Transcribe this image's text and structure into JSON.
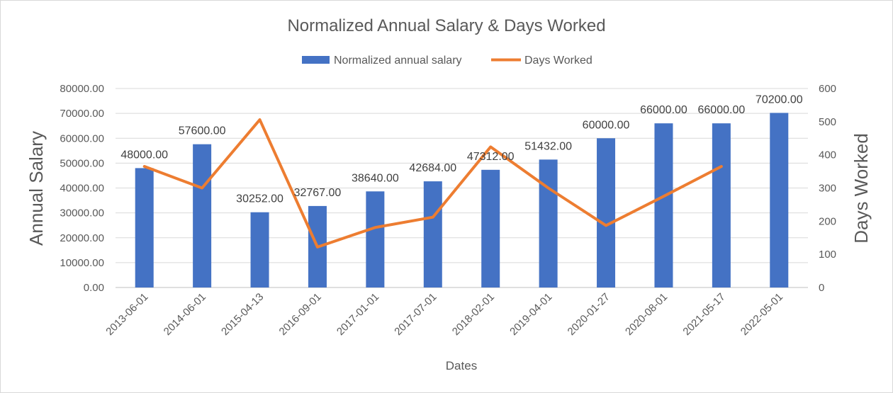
{
  "chart_data": {
    "type": "bar",
    "title": "Normalized Annual Salary & Days Worked",
    "xlabel": "Dates",
    "ylabel": "Annual Salary",
    "y2label": "Days Worked",
    "ylim": [
      0,
      80000
    ],
    "y2lim": [
      0,
      600
    ],
    "yticks": [
      "0.00",
      "10000.00",
      "20000.00",
      "30000.00",
      "40000.00",
      "50000.00",
      "60000.00",
      "70000.00",
      "80000.00"
    ],
    "y2ticks": [
      "0",
      "100",
      "200",
      "300",
      "400",
      "500",
      "600"
    ],
    "categories": [
      "2013-06-01",
      "2014-06-01",
      "2015-04-13",
      "2016-09-01",
      "2017-01-01",
      "2017-07-01",
      "2018-02-01",
      "2019-04-01",
      "2020-01-27",
      "2020-08-01",
      "2021-05-17",
      "2022-05-01"
    ],
    "legend_position": "top",
    "grid": true,
    "series": [
      {
        "name": "Normalized annual salary",
        "type": "bar",
        "axis": "left",
        "color": "#4472c4",
        "values": [
          48000,
          57600,
          30252,
          32767,
          38640,
          42684,
          47312,
          51432,
          60000,
          66000,
          66000,
          70200
        ],
        "labels": [
          "48000.00",
          "57600.00",
          "30252.00",
          "32767.00",
          "38640.00",
          "42684.00",
          "47312.00",
          "51432.00",
          "60000.00",
          "66000.00",
          "66000.00",
          "70200.00"
        ]
      },
      {
        "name": "Days Worked",
        "type": "line",
        "axis": "right",
        "color": "#ed7d31",
        "values": [
          365,
          300,
          506,
          122,
          181,
          212,
          424,
          300,
          187,
          275,
          365,
          null
        ]
      }
    ]
  }
}
